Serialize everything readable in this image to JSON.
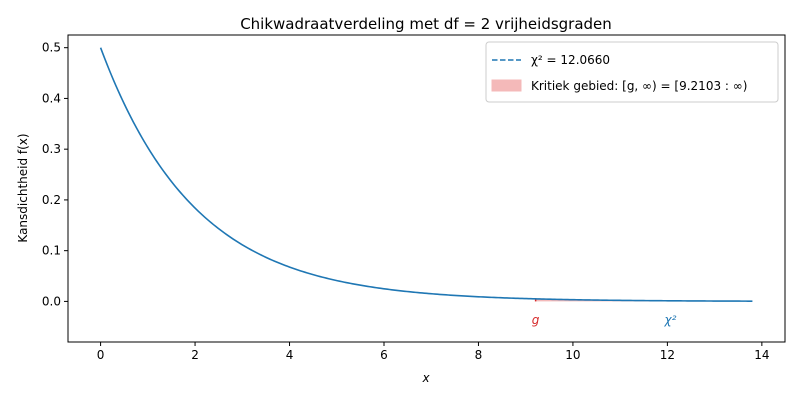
{
  "chart_data": {
    "type": "line",
    "title": "Chikwadraatverdeling met df = 2 vrijheidsgraden",
    "xlabel": "x",
    "ylabel": "Kansdichtheid f(x)",
    "xlim": [
      -0.69,
      14.49
    ],
    "ylim": [
      -0.08,
      0.525
    ],
    "x_ticks": [
      0,
      2,
      4,
      6,
      8,
      10,
      12,
      14
    ],
    "x_tick_labels": [
      "0",
      "2",
      "4",
      "6",
      "8",
      "10",
      "12",
      "14"
    ],
    "y_ticks": [
      0.0,
      0.1,
      0.2,
      0.3,
      0.4,
      0.5
    ],
    "y_tick_labels": [
      "0.0",
      "0.1",
      "0.2",
      "0.3",
      "0.4",
      "0.5"
    ],
    "grid": false,
    "legend_position": "top-right",
    "df": 2,
    "x_max": 13.8,
    "curve_color": "#1f77b4",
    "critical_value": 9.2103,
    "test_statistic": 12.066,
    "critical_color": "#d62728",
    "region_fill_color": "#f4b9b9",
    "legend": [
      {
        "kind": "dashed-line",
        "color": "#1f77b4",
        "text": "χ² = 12.0660"
      },
      {
        "kind": "patch",
        "color": "#f4b9b9",
        "text": "Kritiek gebied: [g, ∞) = [9.2103 : ∞)"
      }
    ],
    "annotations": [
      {
        "text": "g",
        "color": "#d62728",
        "at_x": 9.2103
      },
      {
        "text": "χ²",
        "color": "#1f77b4",
        "at_x": 12.066
      }
    ]
  }
}
